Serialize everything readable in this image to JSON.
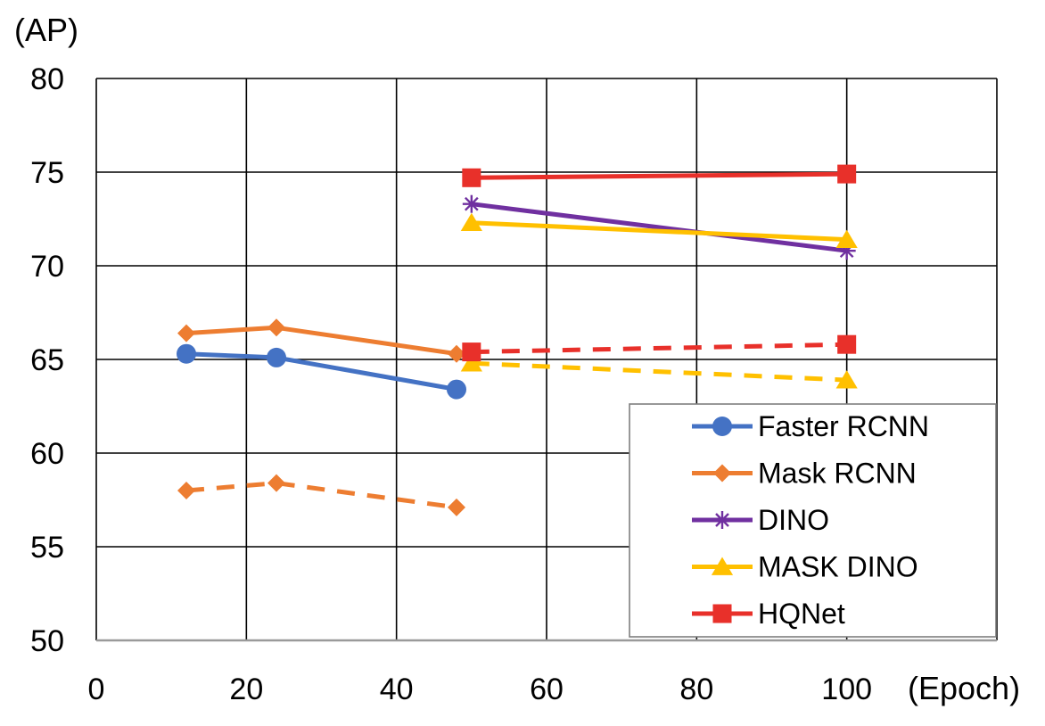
{
  "chart_data": {
    "type": "line",
    "title": "",
    "ylabel": "(AP)",
    "xlabel": "(Epoch)",
    "xlim": [
      0,
      120
    ],
    "ylim": [
      50,
      80
    ],
    "x_ticks": [
      0,
      20,
      40,
      60,
      80,
      100
    ],
    "y_ticks": [
      50,
      55,
      60,
      65,
      70,
      75,
      80
    ],
    "x_tick_labels": [
      "0",
      "20",
      "40",
      "60",
      "80",
      "100"
    ],
    "y_tick_labels": [
      "50",
      "55",
      "60",
      "65",
      "70",
      "75",
      "80"
    ],
    "grid": true,
    "legend_position": "bottom-right",
    "series": [
      {
        "name": "Faster RCNN",
        "key": "faster-rcnn",
        "color": "#4472C4",
        "marker": "circle",
        "dash": false,
        "in_legend": true,
        "points": [
          [
            12,
            65.3
          ],
          [
            24,
            65.1
          ],
          [
            48,
            63.4
          ]
        ]
      },
      {
        "name": "Mask RCNN",
        "key": "mask-rcnn",
        "color": "#ED7D31",
        "marker": "diamond",
        "dash": false,
        "in_legend": true,
        "points": [
          [
            12,
            66.4
          ],
          [
            24,
            66.7
          ],
          [
            48,
            65.3
          ]
        ]
      },
      {
        "name": "Mask RCNN (dashed)",
        "key": "mask-rcnn-dashed",
        "color": "#ED7D31",
        "marker": "diamond",
        "dash": true,
        "in_legend": false,
        "points": [
          [
            12,
            58.0
          ],
          [
            24,
            58.4
          ],
          [
            48,
            57.1
          ]
        ]
      },
      {
        "name": "DINO",
        "key": "dino",
        "color": "#7030A0",
        "marker": "asterisk",
        "dash": false,
        "in_legend": true,
        "points": [
          [
            50,
            73.3
          ],
          [
            100,
            70.8
          ]
        ]
      },
      {
        "name": "MASK DINO",
        "key": "mask-dino",
        "color": "#FFC000",
        "marker": "triangle",
        "dash": false,
        "in_legend": true,
        "points": [
          [
            50,
            72.3
          ],
          [
            100,
            71.4
          ]
        ]
      },
      {
        "name": "MASK DINO (dashed)",
        "key": "mask-dino-dashed",
        "color": "#FFC000",
        "marker": "triangle",
        "dash": true,
        "in_legend": false,
        "points": [
          [
            50,
            64.8
          ],
          [
            100,
            63.9
          ]
        ]
      },
      {
        "name": "HQNet",
        "key": "hqnet",
        "color": "#E8302A",
        "marker": "square",
        "dash": false,
        "in_legend": true,
        "points": [
          [
            50,
            74.7
          ],
          [
            100,
            74.9
          ]
        ]
      },
      {
        "name": "HQNet (dashed)",
        "key": "hqnet-dashed",
        "color": "#E8302A",
        "marker": "square",
        "dash": true,
        "in_legend": false,
        "points": [
          [
            50,
            65.4
          ],
          [
            100,
            65.8
          ]
        ]
      }
    ]
  }
}
